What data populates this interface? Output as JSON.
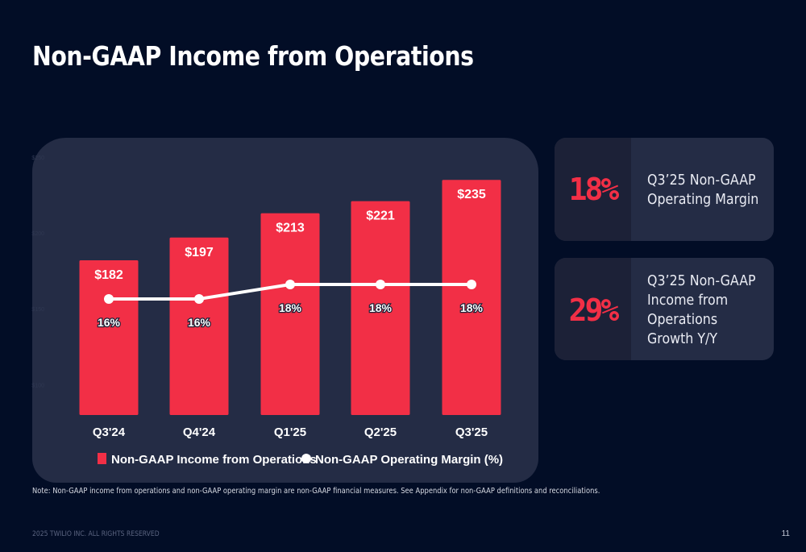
{
  "page": {
    "title": "Non-GAAP Income from Operations",
    "note": "Note: Non-GAAP income from operations and non-GAAP operating margin are non-GAAP financial measures. See Appendix for non-GAAP definitions and reconciliations.",
    "footer": "2025 TWILIO INC. ALL RIGHTS RESERVED",
    "page_number": "11"
  },
  "kpis": [
    {
      "value": "18%",
      "description_lines": [
        "Q3’25 Non-GAAP",
        "Operating Margin"
      ]
    },
    {
      "value": "29%",
      "description_lines": [
        "Q3’25 Non-GAAP",
        "Income from",
        "Operations",
        "Growth Y/Y"
      ]
    }
  ],
  "colors": {
    "bar": "#f22f46",
    "line": "#ffffff",
    "background": "#020d26",
    "panel": "#242c45"
  },
  "chart_data": {
    "type": "bar",
    "title": "Non-GAAP Income from Operations",
    "categories": [
      "Q3'24",
      "Q4'24",
      "Q1'25",
      "Q2'25",
      "Q3'25"
    ],
    "series": [
      {
        "name": "Non-GAAP Income from Operations",
        "type": "bar",
        "unit": "$M",
        "values": [
          182,
          197,
          213,
          221,
          235
        ],
        "labels": [
          "$182",
          "$197",
          "$213",
          "$221",
          "$235"
        ]
      },
      {
        "name": "Non-GAAP Operating Margin (%)",
        "type": "line",
        "unit": "%",
        "values": [
          16,
          16,
          18,
          18,
          18
        ],
        "labels": [
          "16%",
          "16%",
          "18%",
          "18%",
          "18%"
        ]
      }
    ],
    "y_axis_left": {
      "ticks": [
        "$250",
        "$200",
        "$150",
        "$100"
      ],
      "tick_values": [
        250,
        200,
        150,
        100
      ],
      "ylim": [
        80,
        250
      ],
      "visible": "faint"
    },
    "y_axis_right": {
      "ylim": [
        8,
        20
      ]
    },
    "xlabel": "",
    "ylabel": "",
    "grid": false,
    "legend": {
      "position": "bottom",
      "entries": [
        "Non-GAAP Income from Operations",
        "Non-GAAP Operating Margin (%)"
      ]
    }
  }
}
